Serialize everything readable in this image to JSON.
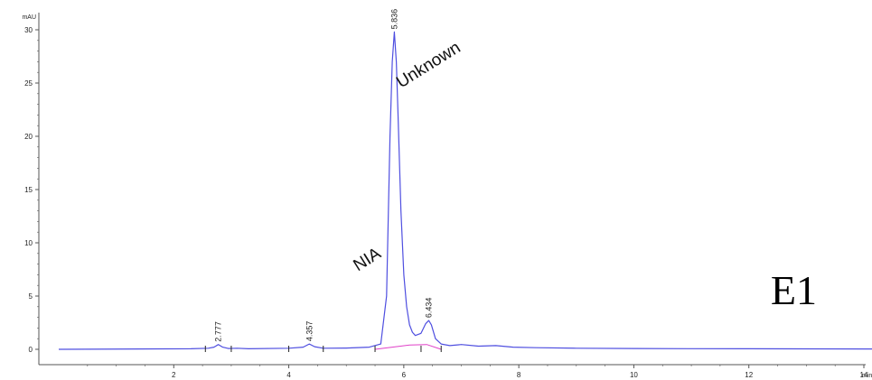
{
  "chart_data": {
    "type": "line",
    "title": "",
    "xlabel": "",
    "ylabel": "",
    "y_unit": "mAU",
    "x_unit": "min",
    "xlim": [
      0.05,
      15.4
    ],
    "ylim": [
      -1.6,
      30.8
    ],
    "xticks": [
      2,
      4,
      6,
      8,
      10,
      12,
      14
    ],
    "yticks": [
      0,
      5,
      10,
      15,
      20,
      25,
      30
    ],
    "grid": false,
    "legend": "none",
    "colors": {
      "signal": "#4f4fe0",
      "baseline": "#e040c8",
      "axis": "#555555"
    },
    "series": [
      {
        "color": "#4f4fe0",
        "x": [
          0.0,
          2.3,
          2.6,
          2.7,
          2.777,
          2.85,
          2.95,
          3.1,
          3.3,
          4.0,
          4.25,
          4.357,
          4.45,
          4.6,
          5.0,
          5.4,
          5.6,
          5.7,
          5.76,
          5.8,
          5.836,
          5.87,
          5.9,
          5.95,
          6.0,
          6.05,
          6.1,
          6.15,
          6.2,
          6.3,
          6.38,
          6.434,
          6.48,
          6.55,
          6.65,
          6.8,
          7.0,
          7.3,
          7.6,
          7.9,
          8.3,
          9.0,
          10.0,
          11.0,
          12.0,
          13.0,
          14.0,
          15.4
        ],
        "y": [
          0.0,
          0.05,
          0.1,
          0.2,
          0.45,
          0.2,
          0.08,
          0.1,
          0.05,
          0.1,
          0.2,
          0.5,
          0.25,
          0.1,
          0.12,
          0.2,
          0.5,
          5.0,
          20.0,
          27.0,
          29.8,
          27.0,
          22.0,
          13.0,
          7.0,
          4.0,
          2.3,
          1.6,
          1.3,
          1.5,
          2.4,
          2.7,
          2.3,
          1.0,
          0.5,
          0.35,
          0.45,
          0.3,
          0.35,
          0.2,
          0.15,
          0.1,
          0.08,
          0.06,
          0.05,
          0.04,
          0.03,
          0.03
        ]
      },
      {
        "color": "#e040c8",
        "x": [
          5.5,
          5.8,
          6.1,
          6.4,
          6.65
        ],
        "y": [
          0.0,
          0.2,
          0.4,
          0.45,
          0.0
        ]
      }
    ],
    "peaks": [
      {
        "rt": 2.777,
        "height": 0.45,
        "label": "2.777"
      },
      {
        "rt": 4.357,
        "height": 0.5,
        "label": "4.357"
      },
      {
        "rt": 5.836,
        "height": 29.8,
        "label": "5.836"
      },
      {
        "rt": 6.434,
        "height": 2.7,
        "label": "6.434"
      }
    ],
    "integration_marks": [
      2.55,
      3.0,
      4.0,
      4.6,
      5.5,
      6.3,
      6.65
    ],
    "annotations": [
      {
        "text": "Unknown",
        "x": 5.95,
        "y": 24.5,
        "rotate": -32
      },
      {
        "text": "NIA",
        "x": 5.2,
        "y": 7.3,
        "rotate": -32
      }
    ],
    "panel_label": "E1"
  }
}
